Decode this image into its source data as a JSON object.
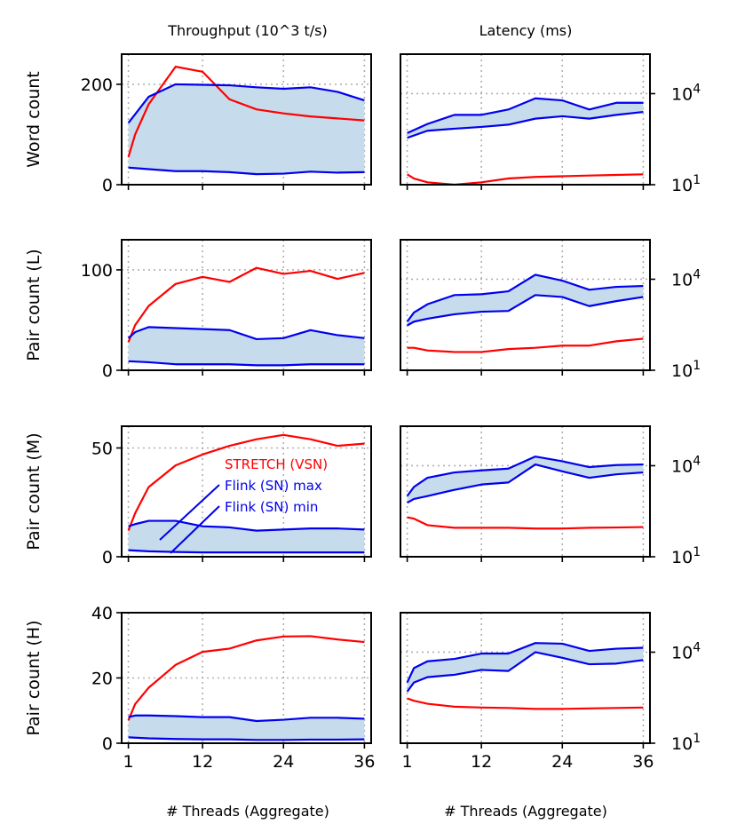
{
  "colors": {
    "stretch": "#ff0000",
    "flink": "#0000ee",
    "band": "#c6dbeb",
    "grid": "#b0b0b0"
  },
  "column_titles": [
    "Throughput (10^3 t/s)",
    "Latency (ms)"
  ],
  "x_label": "# Threads (Aggregate)",
  "chart_data": [
    {
      "type": "line",
      "row": "Word count",
      "metric": "throughput",
      "ylabel": "Word count",
      "ylim": [
        0,
        260
      ],
      "yticks": [
        0,
        200
      ],
      "ytick_labels": [
        "0",
        "200"
      ],
      "yscale": "linear",
      "xlim": [
        0,
        37
      ],
      "xticks": [
        1,
        12,
        24,
        36
      ],
      "xtick_labels": [
        "1",
        "12",
        "24",
        "36"
      ],
      "series": [
        {
          "name": "STRETCH (VSN)",
          "x": [
            1,
            2,
            4,
            8,
            12,
            16,
            20,
            24,
            28,
            32,
            36
          ],
          "values": [
            55,
            100,
            160,
            235,
            225,
            170,
            150,
            142,
            136,
            132,
            128
          ]
        },
        {
          "name": "Flink (SN) max",
          "x": [
            1,
            4,
            8,
            12,
            16,
            20,
            24,
            28,
            32,
            36
          ],
          "values": [
            123,
            175,
            200,
            199,
            198,
            194,
            191,
            194,
            185,
            168
          ]
        },
        {
          "name": "Flink (SN) min",
          "x": [
            1,
            4,
            8,
            12,
            16,
            20,
            24,
            28,
            32,
            36
          ],
          "values": [
            34,
            31,
            27,
            27,
            25,
            21,
            22,
            26,
            24,
            25
          ]
        }
      ]
    },
    {
      "type": "line",
      "row": "Word count",
      "metric": "latency",
      "ylabel": "",
      "ylim": [
        10,
        200000
      ],
      "yticks": [
        10,
        10000
      ],
      "ytick_labels": [
        "10^1",
        "10^4"
      ],
      "yscale": "log",
      "xlim": [
        0,
        37
      ],
      "xticks": [
        1,
        12,
        24,
        36
      ],
      "xtick_labels": [
        "1",
        "12",
        "24",
        "36"
      ],
      "series": [
        {
          "name": "STRETCH (VSN)",
          "x": [
            1,
            2,
            4,
            8,
            12,
            16,
            20,
            24,
            28,
            32,
            36
          ],
          "values": [
            22,
            16,
            12,
            10,
            12,
            16,
            18,
            19,
            20,
            21,
            22
          ]
        },
        {
          "name": "Flink (SN) max",
          "x": [
            1,
            4,
            8,
            12,
            16,
            20,
            24,
            28,
            32,
            36
          ],
          "values": [
            500,
            1000,
            2000,
            2000,
            3000,
            7000,
            6000,
            3000,
            5000,
            5000
          ]
        },
        {
          "name": "Flink (SN) min",
          "x": [
            1,
            4,
            8,
            12,
            16,
            20,
            24,
            28,
            32,
            36
          ],
          "values": [
            350,
            600,
            700,
            800,
            950,
            1500,
            1800,
            1500,
            2000,
            2500
          ]
        }
      ]
    },
    {
      "type": "line",
      "row": "Pair count (L)",
      "metric": "throughput",
      "ylabel": "Pair count (L)",
      "ylim": [
        0,
        130
      ],
      "yticks": [
        0,
        100
      ],
      "ytick_labels": [
        "0",
        "100"
      ],
      "yscale": "linear",
      "xlim": [
        0,
        37
      ],
      "xticks": [
        1,
        12,
        24,
        36
      ],
      "xtick_labels": [
        "1",
        "12",
        "24",
        "36"
      ],
      "series": [
        {
          "name": "STRETCH (VSN)",
          "x": [
            1,
            2,
            4,
            8,
            12,
            16,
            20,
            24,
            28,
            32,
            36
          ],
          "values": [
            28,
            45,
            64,
            86,
            93,
            88,
            102,
            96,
            99,
            91,
            97
          ]
        },
        {
          "name": "Flink (SN) max",
          "x": [
            1,
            2,
            4,
            8,
            12,
            16,
            20,
            24,
            28,
            32,
            36
          ],
          "values": [
            32,
            38,
            43,
            42,
            41,
            40,
            31,
            32,
            40,
            35,
            32
          ]
        },
        {
          "name": "Flink (SN) min",
          "x": [
            1,
            4,
            8,
            12,
            16,
            20,
            24,
            28,
            32,
            36
          ],
          "values": [
            9,
            8,
            6,
            6,
            6,
            5,
            5,
            6,
            6,
            6
          ]
        }
      ]
    },
    {
      "type": "line",
      "row": "Pair count (L)",
      "metric": "latency",
      "ylabel": "",
      "ylim": [
        10,
        200000
      ],
      "yticks": [
        10,
        10000
      ],
      "ytick_labels": [
        "10^1",
        "10^4"
      ],
      "yscale": "log",
      "xlim": [
        0,
        37
      ],
      "xticks": [
        1,
        12,
        24,
        36
      ],
      "xtick_labels": [
        "1",
        "12",
        "24",
        "36"
      ],
      "series": [
        {
          "name": "STRETCH (VSN)",
          "x": [
            1,
            2,
            4,
            8,
            12,
            16,
            20,
            24,
            28,
            32,
            36
          ],
          "values": [
            55,
            55,
            45,
            40,
            40,
            50,
            55,
            65,
            65,
            90,
            110
          ]
        },
        {
          "name": "Flink (SN) max",
          "x": [
            1,
            2,
            4,
            8,
            12,
            16,
            20,
            24,
            28,
            32,
            36
          ],
          "values": [
            400,
            800,
            1500,
            3000,
            3200,
            4000,
            14000,
            9000,
            4500,
            5600,
            6000
          ]
        },
        {
          "name": "Flink (SN) min",
          "x": [
            1,
            2,
            4,
            8,
            12,
            16,
            20,
            24,
            28,
            32,
            36
          ],
          "values": [
            300,
            400,
            500,
            700,
            850,
            900,
            3000,
            2600,
            1300,
            1900,
            2600
          ]
        }
      ]
    },
    {
      "type": "line",
      "row": "Pair count (M)",
      "metric": "throughput",
      "ylabel": "Pair count (M)",
      "ylim": [
        0,
        60
      ],
      "yticks": [
        0,
        50
      ],
      "ytick_labels": [
        "0",
        "50"
      ],
      "yscale": "linear",
      "xlim": [
        0,
        37
      ],
      "xticks": [
        1,
        12,
        24,
        36
      ],
      "xtick_labels": [
        "1",
        "12",
        "24",
        "36"
      ],
      "series": [
        {
          "name": "STRETCH (VSN)",
          "x": [
            1,
            2,
            4,
            8,
            12,
            16,
            20,
            24,
            28,
            32,
            36
          ],
          "values": [
            12,
            20,
            32,
            42,
            47,
            51,
            54,
            56,
            54,
            51,
            52
          ]
        },
        {
          "name": "Flink (SN) max",
          "x": [
            1,
            2,
            4,
            8,
            12,
            16,
            20,
            24,
            28,
            32,
            36
          ],
          "values": [
            14,
            15,
            16.5,
            16.5,
            14,
            13.5,
            12,
            12.5,
            13,
            13,
            12.5
          ]
        },
        {
          "name": "Flink (SN) min",
          "x": [
            1,
            4,
            8,
            12,
            16,
            20,
            24,
            28,
            32,
            36
          ],
          "values": [
            3,
            2.5,
            2.2,
            2,
            2,
            2,
            2,
            2,
            2,
            2
          ]
        }
      ],
      "legend": [
        "STRETCH (VSN)",
        "Flink (SN) max",
        "Flink (SN) min"
      ],
      "legend_placement": "right-middle"
    },
    {
      "type": "line",
      "row": "Pair count (M)",
      "metric": "latency",
      "ylabel": "",
      "ylim": [
        10,
        200000
      ],
      "yticks": [
        10,
        10000
      ],
      "ytick_labels": [
        "10^1",
        "10^4"
      ],
      "yscale": "log",
      "xlim": [
        0,
        37
      ],
      "xticks": [
        1,
        12,
        24,
        36
      ],
      "xtick_labels": [
        "1",
        "12",
        "24",
        "36"
      ],
      "series": [
        {
          "name": "STRETCH (VSN)",
          "x": [
            1,
            2,
            4,
            8,
            12,
            16,
            20,
            24,
            28,
            32,
            36
          ],
          "values": [
            200,
            180,
            110,
            90,
            90,
            90,
            85,
            85,
            90,
            92,
            95
          ]
        },
        {
          "name": "Flink (SN) max",
          "x": [
            1,
            2,
            4,
            8,
            12,
            16,
            20,
            24,
            28,
            32,
            36
          ],
          "values": [
            1000,
            2000,
            4000,
            6000,
            7000,
            8000,
            20000,
            14000,
            9000,
            10500,
            11000
          ]
        },
        {
          "name": "Flink (SN) min",
          "x": [
            1,
            2,
            4,
            8,
            12,
            16,
            20,
            24,
            28,
            32,
            36
          ],
          "values": [
            600,
            800,
            1000,
            1600,
            2400,
            2800,
            11000,
            6500,
            4000,
            5200,
            6000
          ]
        }
      ]
    },
    {
      "type": "line",
      "row": "Pair count (H)",
      "metric": "throughput",
      "ylabel": "Pair count (H)",
      "ylim": [
        0,
        40
      ],
      "yticks": [
        0,
        20,
        40
      ],
      "ytick_labels": [
        "0",
        "20",
        "40"
      ],
      "yscale": "linear",
      "xlim": [
        0,
        37
      ],
      "xticks": [
        1,
        12,
        24,
        36
      ],
      "xtick_labels": [
        "1",
        "12",
        "24",
        "36"
      ],
      "series": [
        {
          "name": "STRETCH (VSN)",
          "x": [
            1,
            2,
            4,
            8,
            12,
            16,
            20,
            24,
            28,
            32,
            36
          ],
          "values": [
            7,
            12,
            17,
            24,
            28,
            29,
            31.5,
            32.7,
            32.8,
            31.8,
            31
          ]
        },
        {
          "name": "Flink (SN) max",
          "x": [
            1,
            2,
            4,
            8,
            12,
            16,
            20,
            24,
            28,
            32,
            36
          ],
          "values": [
            8,
            8.5,
            8.5,
            8.3,
            8,
            8,
            6.8,
            7.2,
            7.8,
            7.8,
            7.5
          ]
        },
        {
          "name": "Flink (SN) min",
          "x": [
            1,
            4,
            8,
            12,
            16,
            20,
            24,
            28,
            32,
            36
          ],
          "values": [
            1.8,
            1.5,
            1.3,
            1.2,
            1.2,
            1,
            1,
            1.1,
            1.1,
            1.2
          ]
        }
      ]
    },
    {
      "type": "line",
      "row": "Pair count (H)",
      "metric": "latency",
      "ylabel": "",
      "ylim": [
        10,
        200000
      ],
      "yticks": [
        10,
        10000
      ],
      "ytick_labels": [
        "10^1",
        "10^4"
      ],
      "yscale": "log",
      "xlim": [
        0,
        37
      ],
      "xticks": [
        1,
        12,
        24,
        36
      ],
      "xtick_labels": [
        "1",
        "12",
        "24",
        "36"
      ],
      "series": [
        {
          "name": "STRETCH (VSN)",
          "x": [
            1,
            2,
            4,
            8,
            12,
            16,
            20,
            24,
            28,
            32,
            36
          ],
          "values": [
            300,
            250,
            200,
            160,
            150,
            145,
            135,
            135,
            140,
            145,
            150
          ]
        },
        {
          "name": "Flink (SN) max",
          "x": [
            1,
            2,
            4,
            8,
            12,
            16,
            20,
            24,
            28,
            32,
            36
          ],
          "values": [
            1000,
            3000,
            5000,
            6000,
            9000,
            9000,
            20000,
            19000,
            11000,
            13000,
            14000
          ]
        },
        {
          "name": "Flink (SN) min",
          "x": [
            1,
            2,
            4,
            8,
            12,
            16,
            20,
            24,
            28,
            32,
            36
          ],
          "values": [
            500,
            1000,
            1500,
            1800,
            2600,
            2400,
            10000,
            6500,
            4000,
            4200,
            5500
          ]
        }
      ]
    }
  ]
}
